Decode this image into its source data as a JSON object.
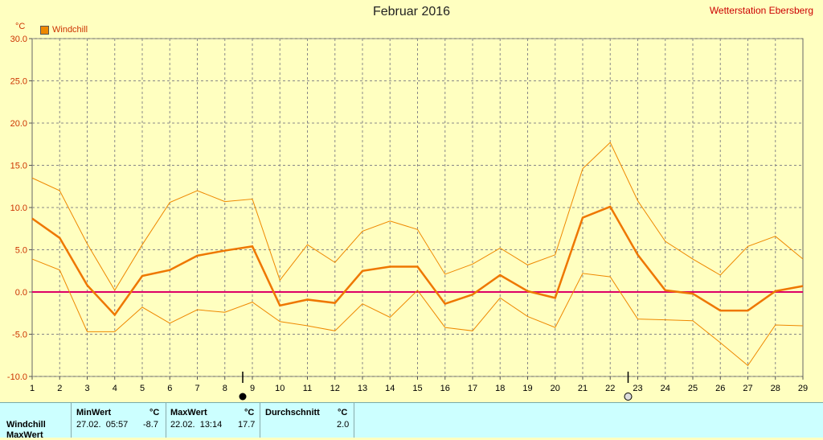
{
  "header": {
    "title": "Februar 2016",
    "station": "Wetterstation Ebersberg",
    "unit": "°C",
    "legend_label": "Windchill"
  },
  "chart_data": {
    "type": "line",
    "title": "Februar 2016",
    "ylabel": "°C",
    "xlabel": "",
    "x": [
      1,
      2,
      3,
      4,
      5,
      6,
      7,
      8,
      9,
      10,
      11,
      12,
      13,
      14,
      15,
      16,
      17,
      18,
      19,
      20,
      21,
      22,
      23,
      24,
      25,
      26,
      27,
      28,
      29
    ],
    "ylim": [
      -10,
      30
    ],
    "xlim": [
      1,
      29
    ],
    "yticks": [
      "30.0",
      "25.0",
      "20.0",
      "15.0",
      "10.0",
      "5.0",
      "0.0",
      "-5.0",
      "-10.0"
    ],
    "grid": true,
    "legend_position": "top-left",
    "zero_line_color": "#dd0066",
    "series": [
      {
        "name": "Windchill",
        "role": "mean",
        "color": "#ee7700",
        "values": [
          8.7,
          6.4,
          0.8,
          -2.7,
          1.9,
          2.6,
          4.3,
          4.9,
          5.4,
          -1.6,
          -0.9,
          -1.3,
          2.5,
          3.0,
          3.0,
          -1.4,
          -0.3,
          2.0,
          0.1,
          -0.7,
          8.8,
          10.1,
          4.4,
          0.2,
          -0.2,
          -2.2,
          -2.2,
          0.1,
          0.7
        ]
      },
      {
        "role": "max",
        "color": "#ee8800",
        "values": [
          13.5,
          12.0,
          5.7,
          0.2,
          5.6,
          10.6,
          12.0,
          10.7,
          11.0,
          1.4,
          5.6,
          3.5,
          7.2,
          8.4,
          7.4,
          2.1,
          3.3,
          5.2,
          3.2,
          4.4,
          14.6,
          17.7,
          10.8,
          6.0,
          3.9,
          2.0,
          5.4,
          6.6,
          3.9
        ]
      },
      {
        "role": "min",
        "color": "#ee8800",
        "values": [
          3.9,
          2.6,
          -4.7,
          -4.7,
          -1.8,
          -3.7,
          -2.1,
          -2.4,
          -1.2,
          -3.5,
          -4.0,
          -4.6,
          -1.4,
          -3.0,
          0.2,
          -4.2,
          -4.6,
          -0.7,
          -2.9,
          -4.2,
          2.2,
          1.8,
          -3.2,
          -3.3,
          -3.4,
          -6.0,
          -8.7,
          -3.9,
          -4.0
        ]
      }
    ],
    "markers": [
      {
        "day": 9,
        "symbol": "new-moon"
      },
      {
        "day": 23,
        "symbol": "full-moon"
      }
    ]
  },
  "stats": {
    "row_label": "Windchill",
    "next_row_label": "MaxWert",
    "min": {
      "header": "MinWert",
      "unit": "°C",
      "datetime": "27.02.  05:57",
      "value": "-8.7"
    },
    "max": {
      "header": "MaxWert",
      "unit": "°C",
      "datetime": "22.02.  13:14",
      "value": "17.7"
    },
    "avg": {
      "header": "Durchschnitt",
      "unit": "°C",
      "value": "2.0"
    }
  }
}
